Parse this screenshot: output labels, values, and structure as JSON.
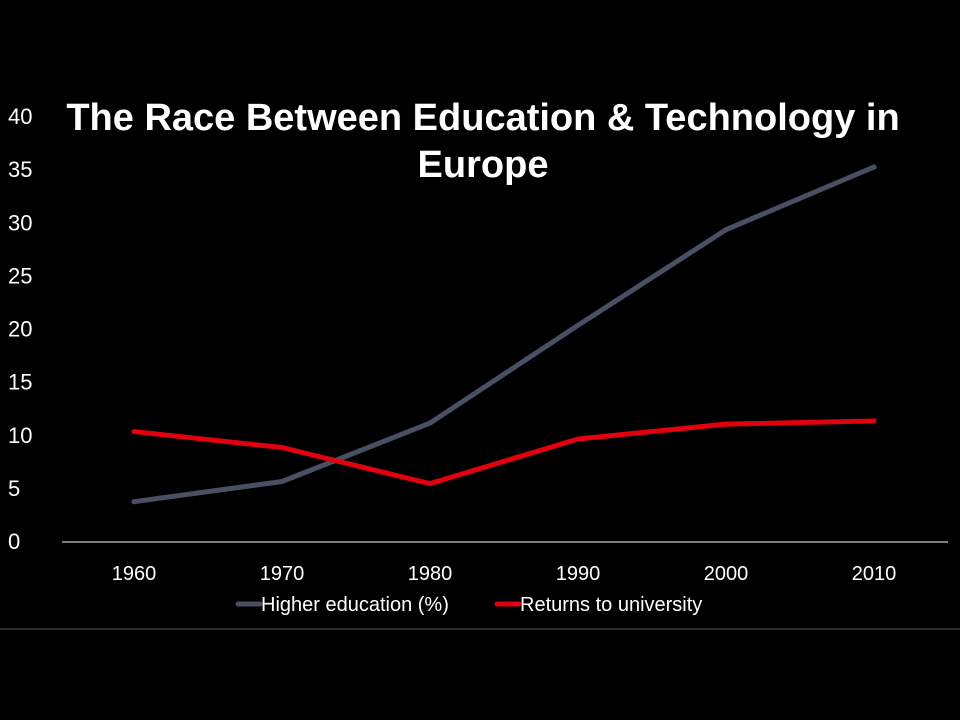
{
  "chart_data": {
    "type": "line",
    "title_lines": [
      "The Race Between Education & Technology in",
      "Europe"
    ],
    "xlabel": "",
    "ylabel": "",
    "categories": [
      "1960",
      "1970",
      "1980",
      "1990",
      "2000",
      "2010"
    ],
    "ylim": [
      0,
      40
    ],
    "yticks": [
      "0",
      "5",
      "10",
      "15",
      "20",
      "25",
      "30",
      "35",
      "40"
    ],
    "grid": false,
    "legend_position": "bottom",
    "series": [
      {
        "name": "Higher education (%)",
        "color": "#4a5063",
        "values": [
          3.7,
          5.6,
          11.1,
          20.3,
          29.3,
          35.2
        ]
      },
      {
        "name": "Returns to university",
        "color": "#e0000e",
        "values": [
          10.3,
          8.8,
          5.4,
          9.6,
          11.0,
          11.3
        ]
      }
    ]
  }
}
